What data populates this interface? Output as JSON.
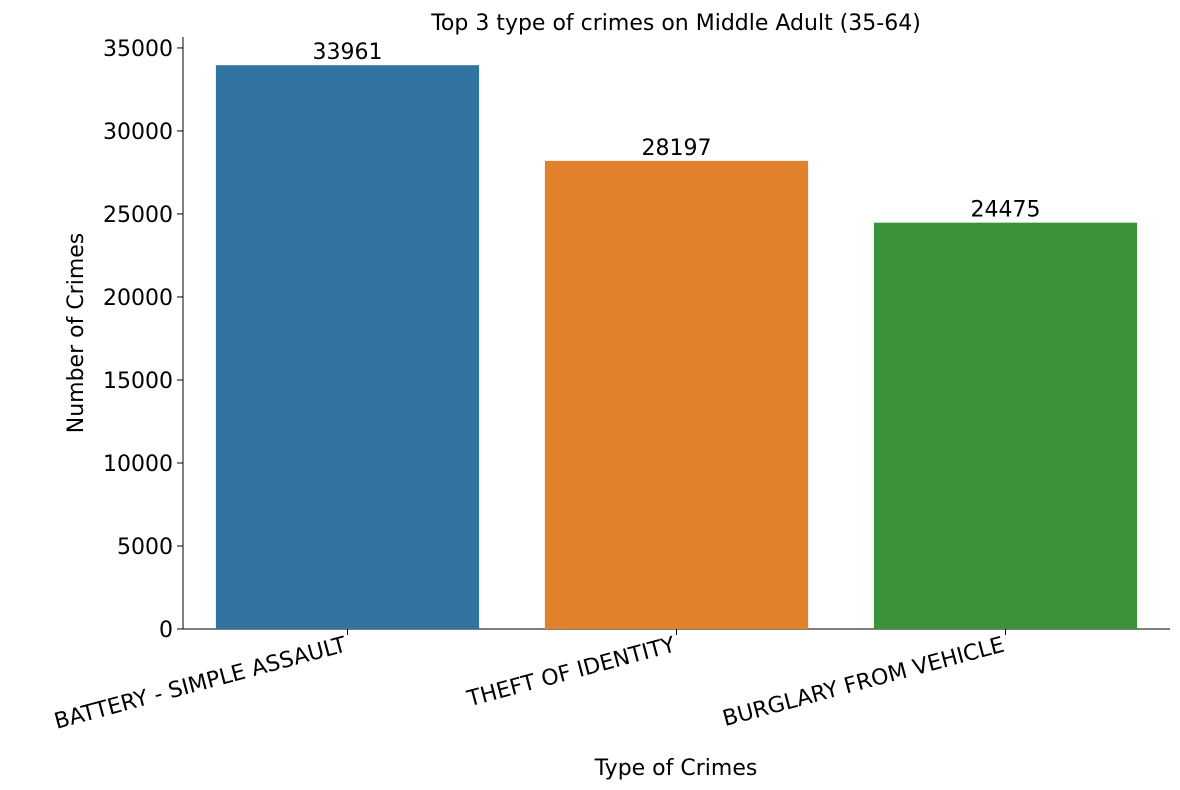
{
  "chart_data": {
    "type": "bar",
    "title": "Top 3 type of crimes on Middle Adult (35-64)",
    "xlabel": "Type of Crimes",
    "ylabel": "Number of Crimes",
    "categories": [
      "BATTERY - SIMPLE ASSAULT",
      "THEFT OF IDENTITY",
      "BURGLARY FROM VEHICLE"
    ],
    "values": [
      33961,
      28197,
      24475
    ],
    "colors": [
      "#3274a1",
      "#e1812c",
      "#3a923a"
    ],
    "ylim": [
      0,
      35659
    ],
    "yticks": [
      0,
      5000,
      10000,
      15000,
      20000,
      25000,
      30000,
      35000
    ],
    "grid": false
  }
}
